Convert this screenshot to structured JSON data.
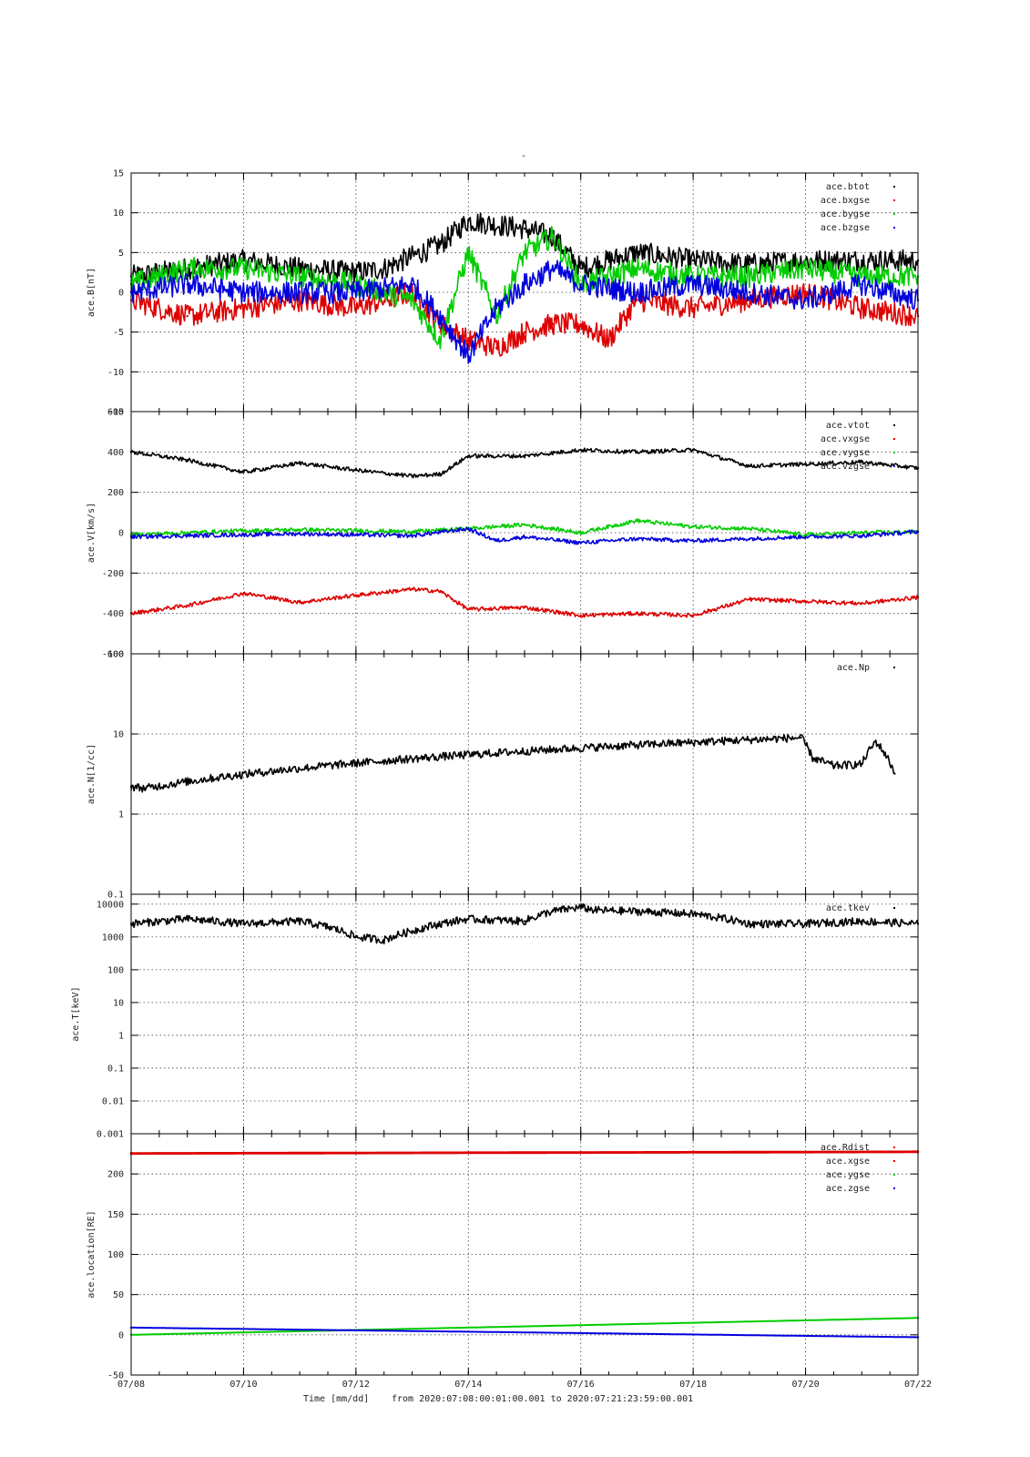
{
  "title": "-",
  "footer": {
    "axis_title": "Time [mm/dd]",
    "range_text": "from 2020:07:08:00:01:00.001  to  2020:07:21:23:59:00.001"
  },
  "x_axis": {
    "min": "07/08",
    "max": "07/22",
    "ticks": [
      "07/08",
      "07/10",
      "07/12",
      "07/14",
      "07/16",
      "07/18",
      "07/20",
      "07/22"
    ]
  },
  "colors": {
    "black": "#000000",
    "red": "#dd0000",
    "green": "#00cc00",
    "blue": "#0000dd"
  },
  "chart_data": [
    {
      "type": "scatter",
      "ylabel": "ace.B[nT]",
      "ylim": [
        -15,
        15
      ],
      "yticks": [
        15,
        10,
        5,
        0,
        -5,
        -10,
        -15
      ],
      "scale": "linear",
      "grid": true,
      "legend_position": "top-right",
      "series": [
        {
          "name": "ace.btot",
          "color": "#000000",
          "x": [
            "07/08",
            "07/09",
            "07/10",
            "07/11",
            "07/12",
            "07/12 12:00",
            "07/13 12:00",
            "07/14",
            "07/15",
            "07/15 12:00",
            "07/16",
            "07/17",
            "07/18",
            "07/19",
            "07/20",
            "07/21",
            "07/22"
          ],
          "y": [
            2,
            3,
            4,
            3,
            2.5,
            3,
            6,
            9,
            8,
            7,
            3,
            5,
            4,
            3.5,
            4,
            4,
            4
          ]
        },
        {
          "name": "ace.bxgse",
          "color": "#dd0000",
          "x": [
            "07/08",
            "07/09",
            "07/10",
            "07/11",
            "07/12",
            "07/13",
            "07/13 12:00",
            "07/14",
            "07/14 12:00",
            "07/15",
            "07/15 12:00",
            "07/16",
            "07/16 12:00",
            "07/17",
            "07/18",
            "07/19",
            "07/20",
            "07/21",
            "07/22"
          ],
          "y": [
            -1,
            -3,
            -2,
            -1,
            -2,
            0,
            -4,
            -6,
            -7,
            -5,
            -4,
            -4,
            -6,
            -1,
            -2,
            -1,
            0,
            -2,
            -3
          ]
        },
        {
          "name": "ace.bygse",
          "color": "#00cc00",
          "x": [
            "07/08",
            "07/09",
            "07/10",
            "07/11",
            "07/12",
            "07/13",
            "07/13 12:00",
            "07/14",
            "07/14 12:00",
            "07/15",
            "07/15 12:00",
            "07/16",
            "07/17",
            "07/18",
            "07/19",
            "07/20",
            "07/21",
            "07/22"
          ],
          "y": [
            1,
            3,
            3,
            2,
            1,
            -1,
            -6,
            5,
            -3,
            5,
            7,
            1,
            3,
            2,
            2,
            3,
            2,
            2
          ]
        },
        {
          "name": "ace.bzgse",
          "color": "#0000dd",
          "x": [
            "07/08",
            "07/09",
            "07/10",
            "07/11",
            "07/12",
            "07/13",
            "07/13 12:00",
            "07/14",
            "07/14 12:00",
            "07/15",
            "07/15 12:00",
            "07/16",
            "07/17",
            "07/18",
            "07/19",
            "07/20",
            "07/21",
            "07/22"
          ],
          "y": [
            0,
            1,
            0,
            0,
            0,
            1,
            -3,
            -8,
            -2,
            1,
            3,
            1,
            0,
            1,
            0,
            -1,
            1,
            -1
          ]
        }
      ]
    },
    {
      "type": "scatter",
      "ylabel": "ace.V[km/s]",
      "ylim": [
        -600,
        600
      ],
      "yticks": [
        600,
        400,
        200,
        0,
        -200,
        -400,
        -600
      ],
      "scale": "linear",
      "grid": true,
      "legend_position": "top-right",
      "series": [
        {
          "name": "ace.vtot",
          "color": "#000000",
          "x": [
            "07/08",
            "07/09",
            "07/10",
            "07/11",
            "07/12",
            "07/13",
            "07/13 12:00",
            "07/14",
            "07/15",
            "07/16",
            "07/17",
            "07/18",
            "07/19",
            "07/20",
            "07/21",
            "07/22"
          ],
          "y": [
            400,
            360,
            300,
            345,
            310,
            280,
            290,
            380,
            380,
            410,
            400,
            410,
            330,
            340,
            350,
            320
          ]
        },
        {
          "name": "ace.vxgse",
          "color": "#dd0000",
          "x": [
            "07/08",
            "07/09",
            "07/10",
            "07/11",
            "07/12",
            "07/13",
            "07/13 12:00",
            "07/14",
            "07/15",
            "07/16",
            "07/17",
            "07/18",
            "07/19",
            "07/20",
            "07/21",
            "07/22"
          ],
          "y": [
            -400,
            -360,
            -300,
            -345,
            -310,
            -280,
            -290,
            -380,
            -370,
            -410,
            -400,
            -410,
            -330,
            -340,
            -350,
            -320
          ]
        },
        {
          "name": "ace.vygse",
          "color": "#00cc00",
          "x": [
            "07/08",
            "07/09",
            "07/10",
            "07/11",
            "07/12",
            "07/13",
            "07/14",
            "07/14 12:00",
            "07/15",
            "07/16",
            "07/17",
            "07/18",
            "07/19",
            "07/20",
            "07/21",
            "07/22"
          ],
          "y": [
            -10,
            0,
            10,
            15,
            10,
            5,
            20,
            30,
            40,
            0,
            60,
            30,
            20,
            -10,
            0,
            5
          ]
        },
        {
          "name": "ace.vzgse",
          "color": "#0000dd",
          "x": [
            "07/08",
            "07/09",
            "07/10",
            "07/11",
            "07/12",
            "07/13",
            "07/14",
            "07/14 12:00",
            "07/15",
            "07/16",
            "07/17",
            "07/18",
            "07/19",
            "07/20",
            "07/21",
            "07/22"
          ],
          "y": [
            -20,
            -15,
            -10,
            -5,
            -10,
            -15,
            20,
            -40,
            -20,
            -50,
            -30,
            -40,
            -30,
            -20,
            -15,
            5
          ]
        }
      ]
    },
    {
      "type": "scatter",
      "ylabel": "ace.N[1/cc]",
      "ylim": [
        0.1,
        100
      ],
      "yticks": [
        100,
        10,
        1,
        0.1
      ],
      "scale": "log",
      "grid": true,
      "legend_position": "top-right",
      "series": [
        {
          "name": "ace.Np",
          "color": "#000000",
          "x": [
            "07/08",
            "07/08 06:00",
            "07/19 22:00",
            "07/20 03:00",
            "07/20 12:00",
            "07/21",
            "07/21 06:00",
            "07/21 14:00"
          ],
          "y": [
            2.2,
            2.1,
            9,
            5,
            4,
            4.2,
            8,
            3.2
          ]
        }
      ]
    },
    {
      "type": "scatter",
      "ylabel": "ace.T[keV]",
      "ylim": [
        0.001,
        20000
      ],
      "yticks": [
        10000,
        1000,
        100,
        10,
        1,
        0.1,
        0.01,
        0.001
      ],
      "scale": "log",
      "grid": true,
      "legend_position": "top-right",
      "series": [
        {
          "name": "ace.tkev",
          "color": "#000000",
          "x": [
            "07/08",
            "07/09",
            "07/10",
            "07/11",
            "07/12",
            "07/12 12:00",
            "07/13",
            "07/14",
            "07/15",
            "07/15 12:00",
            "07/16",
            "07/16 06:00",
            "07/17",
            "07/18",
            "07/19",
            "07/20",
            "07/21",
            "07/22"
          ],
          "y": [
            2500,
            3500,
            2500,
            3000,
            1000,
            800,
            1500,
            3500,
            3000,
            6000,
            8000,
            6500,
            6000,
            5000,
            2500,
            2500,
            3000,
            2500
          ]
        }
      ]
    },
    {
      "type": "line",
      "ylabel": "ace.location[RE]",
      "ylim": [
        -50,
        250
      ],
      "yticks": [
        200,
        150,
        100,
        50,
        0,
        -50
      ],
      "scale": "linear",
      "grid": true,
      "legend_position": "top-right",
      "series": [
        {
          "name": "ace.Rdist",
          "color": "#dd0000",
          "x": [
            "07/08",
            "07/22"
          ],
          "y": [
            226,
            228
          ]
        },
        {
          "name": "ace.xgse",
          "color": "#dd0000",
          "x": [
            "07/08",
            "07/22"
          ],
          "y": [
            225,
            227
          ]
        },
        {
          "name": "ace.ygse",
          "color": "#00cc00",
          "x": [
            "07/08",
            "07/22"
          ],
          "y": [
            0,
            21
          ]
        },
        {
          "name": "ace.zgse",
          "color": "#0000dd",
          "x": [
            "07/08",
            "07/22"
          ],
          "y": [
            9,
            -3
          ]
        }
      ]
    }
  ]
}
